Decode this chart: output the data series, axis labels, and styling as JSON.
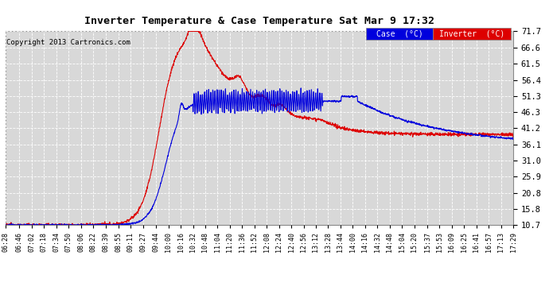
{
  "title": "Inverter Temperature & Case Temperature Sat Mar 9 17:32",
  "copyright": "Copyright 2013 Cartronics.com",
  "bg_color": "#ffffff",
  "plot_bg_color": "#d8d8d8",
  "grid_color": "#ffffff",
  "case_color": "#0000dd",
  "inverter_color": "#dd0000",
  "ylim": [
    10.7,
    71.7
  ],
  "yticks": [
    10.7,
    15.8,
    20.8,
    25.9,
    31.0,
    36.1,
    41.2,
    46.3,
    51.3,
    56.4,
    61.5,
    66.6,
    71.7
  ],
  "legend_case_label": "Case  (°C)",
  "legend_inverter_label": "Inverter  (°C)",
  "xtick_labels": [
    "06:28",
    "06:46",
    "07:02",
    "07:18",
    "07:34",
    "07:50",
    "08:06",
    "08:22",
    "08:39",
    "08:55",
    "09:11",
    "09:27",
    "09:44",
    "10:00",
    "10:16",
    "10:32",
    "10:48",
    "11:04",
    "11:20",
    "11:36",
    "11:52",
    "12:08",
    "12:24",
    "12:40",
    "12:56",
    "13:12",
    "13:28",
    "13:44",
    "14:00",
    "14:16",
    "14:32",
    "14:48",
    "15:04",
    "15:20",
    "15:37",
    "15:53",
    "16:09",
    "16:25",
    "16:41",
    "16:57",
    "17:13",
    "17:29"
  ]
}
